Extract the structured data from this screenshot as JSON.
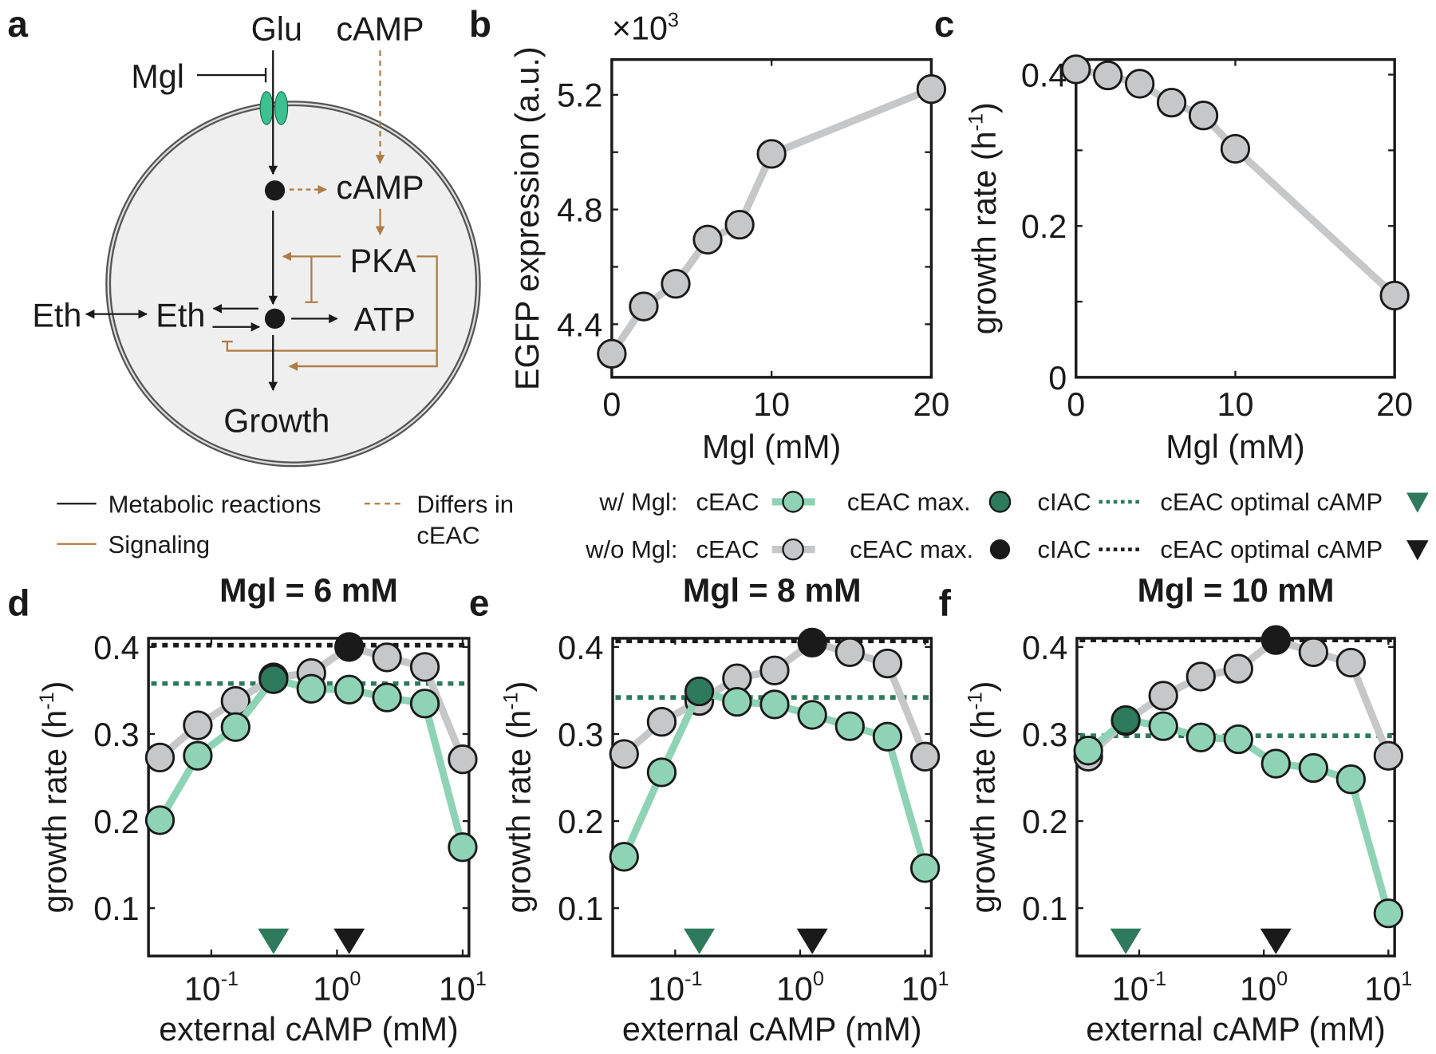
{
  "panel_letters": {
    "a": "a",
    "b": "b",
    "c": "c",
    "d": "d",
    "e": "e",
    "f": "f"
  },
  "diagram": {
    "glu": "Glu",
    "camp_ext": "cAMP",
    "mgl": "Mgl",
    "camp_int": "cAMP",
    "pka": "PKA",
    "atp": "ATP",
    "eth_ext": "Eth",
    "eth_int": "Eth",
    "growth": "Growth"
  },
  "legend_a": {
    "metabolic": "Metabolic reactions",
    "signaling": "Signaling",
    "differs_1": "Differs in",
    "differs_2": "cEAC"
  },
  "legend_main": {
    "with_mgl": "w/ Mgl:",
    "without_mgl": "w/o Mgl:",
    "ceac": "cEAC",
    "ceac_max": "cEAC max.",
    "ciac": "cIAC",
    "optimal": "cEAC optimal cAMP"
  },
  "colors": {
    "green_light": "#8fd3b6",
    "green_dark": "#2e7a5d",
    "gray": "#c6c7c8",
    "black": "#1a1a1a",
    "brown": "#b07c45",
    "cell": "#efefef",
    "channel": "#3cc191"
  },
  "chart_data": [
    {
      "panel": "b",
      "type": "line",
      "x": [
        0,
        2,
        4,
        6,
        8,
        10,
        20
      ],
      "y": [
        4.297,
        4.462,
        4.541,
        4.695,
        4.747,
        4.994,
        5.22
      ],
      "xlabel": "Mgl (mM)",
      "ylabel": "EGFP expression (a.u.)",
      "multiplier_base": "×10",
      "multiplier_exp": "3",
      "xlim": [
        0,
        20
      ],
      "ylim": [
        4.215,
        5.323
      ],
      "xticks": [
        0,
        10,
        20
      ],
      "xtick_labels": [
        "0",
        "10",
        "20"
      ],
      "yticks": [
        4.4,
        4.8,
        5.2
      ],
      "ytick_labels": [
        "4.4",
        "4.8",
        "5.2"
      ],
      "yminor": [
        4.6,
        5.0
      ]
    },
    {
      "panel": "c",
      "type": "line",
      "x": [
        0,
        2,
        4,
        6,
        8,
        10,
        20
      ],
      "y": [
        0.407,
        0.399,
        0.388,
        0.363,
        0.346,
        0.302,
        0.108
      ],
      "xlabel": "Mgl (mM)",
      "ylabel_main": "growth rate (h",
      "ylabel_sup": "-1",
      "ylabel_end": ")",
      "xlim": [
        0,
        20
      ],
      "ylim": [
        0,
        0.42
      ],
      "xticks": [
        0,
        10,
        20
      ],
      "xtick_labels": [
        "0",
        "10",
        "20"
      ],
      "yticks": [
        0,
        0.2,
        0.4
      ],
      "ytick_labels": [
        "0",
        "0.2",
        "0.4"
      ],
      "yminor": [
        0.1,
        0.3
      ]
    },
    {
      "panel": "d",
      "type": "line",
      "title": "Mgl = 6 mM",
      "xscale": "log",
      "x": [
        0.039,
        0.078,
        0.156,
        0.3125,
        0.625,
        1.25,
        2.5,
        5,
        10
      ],
      "series": [
        {
          "name": "w/o Mgl cEAC",
          "values": [
            0.273,
            0.31,
            0.338,
            0.365,
            0.37,
            0.4,
            0.388,
            0.377,
            0.271
          ],
          "max_index": 5,
          "ciac": 0.402,
          "optimal_camp": 1.25
        },
        {
          "name": "w/ Mgl cEAC",
          "values": [
            0.201,
            0.275,
            0.308,
            0.363,
            0.352,
            0.351,
            0.342,
            0.335,
            0.17
          ],
          "max_index": 3,
          "ciac": 0.358,
          "optimal_camp": 0.3125
        }
      ],
      "xlabel": "external cAMP (mM)",
      "ylabel_main": "growth rate (h",
      "ylabel_sup": "-1",
      "ylabel_end": ")",
      "xlim_log10": [
        -1.5,
        1.05
      ],
      "ylim": [
        0.045,
        0.41
      ],
      "xtick_base": "10",
      "xtick_exps": [
        "-1",
        "0",
        "1"
      ],
      "yticks": [
        0.1,
        0.2,
        0.3,
        0.4
      ],
      "ytick_labels": [
        "0.1",
        "0.2",
        "0.3",
        "0.4"
      ]
    },
    {
      "panel": "e",
      "type": "line",
      "title": "Mgl = 8 mM",
      "xscale": "log",
      "x": [
        0.039,
        0.078,
        0.156,
        0.3125,
        0.625,
        1.25,
        2.5,
        5,
        10
      ],
      "series": [
        {
          "name": "w/o Mgl cEAC",
          "values": [
            0.277,
            0.314,
            0.338,
            0.364,
            0.373,
            0.405,
            0.394,
            0.381,
            0.274
          ],
          "max_index": 5,
          "ciac": 0.407,
          "optimal_camp": 1.25
        },
        {
          "name": "w/ Mgl cEAC",
          "values": [
            0.159,
            0.256,
            0.349,
            0.337,
            0.334,
            0.322,
            0.309,
            0.297,
            0.146
          ],
          "max_index": 2,
          "ciac": 0.342,
          "optimal_camp": 0.156
        }
      ],
      "xlabel": "external cAMP (mM)",
      "ylabel_main": "growth rate (h",
      "ylabel_sup": "-1",
      "ylabel_end": ")",
      "xlim_log10": [
        -1.5,
        1.05
      ],
      "ylim": [
        0.045,
        0.41
      ],
      "xtick_base": "10",
      "xtick_exps": [
        "-1",
        "0",
        "1"
      ],
      "yticks": [
        0.1,
        0.2,
        0.3,
        0.4
      ],
      "ytick_labels": [
        "0.1",
        "0.2",
        "0.3",
        "0.4"
      ]
    },
    {
      "panel": "f",
      "type": "line",
      "title": "Mgl = 10 mM",
      "xscale": "log",
      "x": [
        0.039,
        0.078,
        0.156,
        0.3125,
        0.625,
        1.25,
        2.5,
        5,
        10
      ],
      "series": [
        {
          "name": "w/o Mgl cEAC",
          "values": [
            0.274,
            0.315,
            0.344,
            0.366,
            0.375,
            0.408,
            0.394,
            0.382,
            0.275
          ],
          "max_index": 5,
          "ciac": 0.408,
          "optimal_camp": 1.25
        },
        {
          "name": "w/ Mgl cEAC",
          "values": [
            0.281,
            0.316,
            0.309,
            0.296,
            0.294,
            0.266,
            0.261,
            0.248,
            0.094
          ],
          "max_index": 1,
          "ciac": 0.298,
          "optimal_camp": 0.078
        }
      ],
      "xlabel": "external cAMP (mM)",
      "ylabel_main": "growth rate (h",
      "ylabel_sup": "-1",
      "ylabel_end": ")",
      "xlim_log10": [
        -1.5,
        1.05
      ],
      "ylim": [
        0.045,
        0.41
      ],
      "xtick_base": "10",
      "xtick_exps": [
        "-1",
        "0",
        "1"
      ],
      "yticks": [
        0.1,
        0.2,
        0.3,
        0.4
      ],
      "ytick_labels": [
        "0.1",
        "0.2",
        "0.3",
        "0.4"
      ]
    }
  ]
}
